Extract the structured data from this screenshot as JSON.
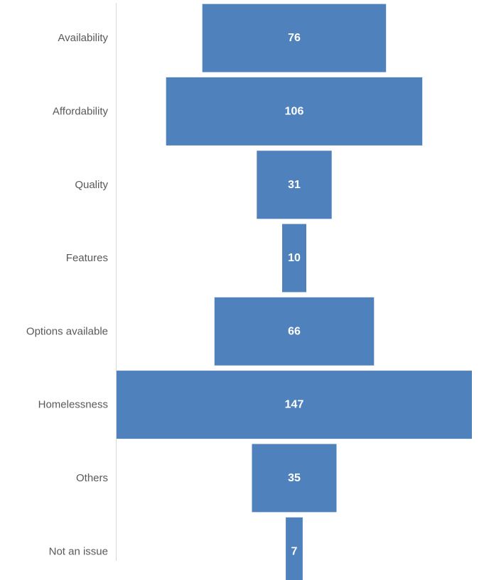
{
  "chart_data": {
    "type": "bar",
    "orientation": "horizontal",
    "style": "funnel-centered",
    "title": "",
    "xlabel": "",
    "ylabel": "",
    "categories": [
      "Availability",
      "Affordability",
      "Quality",
      "Features",
      "Options available",
      "Homelessness",
      "Others",
      "Not an issue"
    ],
    "values": [
      76,
      106,
      31,
      10,
      66,
      147,
      35,
      7
    ],
    "xlim": [
      0,
      147
    ],
    "data_labels": true,
    "legend": "none",
    "grid": false,
    "colors": {
      "bar": "#4f81bd",
      "data_label": "#ffffff",
      "category_label": "#595959",
      "axis_line": "#d9d9d9",
      "background": "#ffffff"
    }
  }
}
